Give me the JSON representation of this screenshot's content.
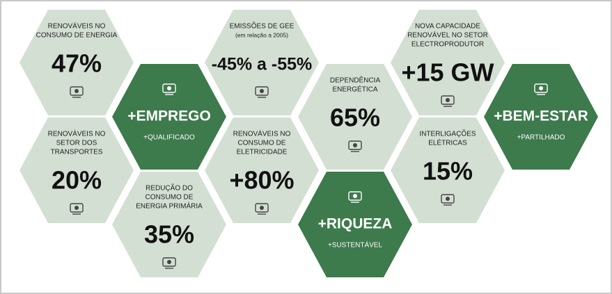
{
  "nodes": [
    {
      "label": [
        "RENOVÁVEIS NO",
        "CONSUMO DE ENERGIA"
      ],
      "value": "47%",
      "color": "#d3dfd3"
    },
    {
      "label": [
        "RENOVÁVEIS NO",
        "SETOR DOS",
        "TRANSPORTES"
      ],
      "value": "20%",
      "color": "#d3dfd3"
    },
    {
      "value": "+EMPREGO",
      "subtitle": "+QUALIFICADO",
      "color": "#3d7a4c"
    },
    {
      "label": [
        "REDUÇÃO DO",
        "CONSUMO DE",
        "ENERGIA PRIMÁRIA"
      ],
      "value": "35%",
      "color": "#d3dfd3"
    },
    {
      "label": [
        "EMISSÕES DE GEE"
      ],
      "note": "(em relação a 2005)",
      "value": "-45% a -55%",
      "color": "#d3dfd3"
    },
    {
      "label": [
        "RENOVÁVEIS NO",
        "CONSUMO DE",
        "ELETRICIDADE"
      ],
      "value": "+80%",
      "color": "#d3dfd3"
    },
    {
      "label": [
        "DEPENDÊNCIA",
        "ENERGÉTICA"
      ],
      "value": "65%",
      "color": "#d3dfd3"
    },
    {
      "value": "+RIQUEZA",
      "subtitle": "+SUSTENTÁVEL",
      "color": "#3d7a4c"
    },
    {
      "label": [
        "NOVA CAPACIDADE",
        "RENOVÁVEL NO SETOR",
        "ELECTROPRODUTOR"
      ],
      "value": "+15 GW",
      "color": "#d3dfd3"
    },
    {
      "label": [
        "INTERLIGAÇÕES",
        "ELÉTRICAS"
      ],
      "value": "15%",
      "color": "#d3dfd3"
    },
    {
      "value": "+BEM-ESTAR",
      "subtitle": "+PARTILHADO",
      "color": "#3d7a4c"
    }
  ]
}
